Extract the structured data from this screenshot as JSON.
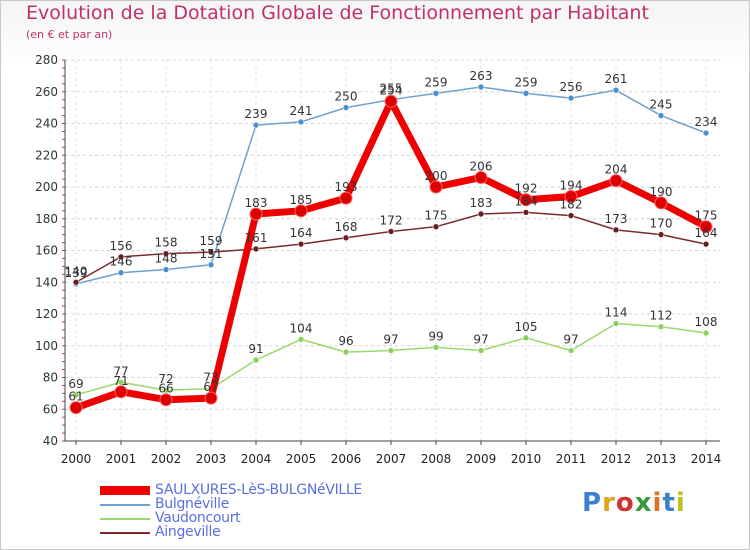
{
  "title": "Evolution de la Dotation Globale de Fonctionnement par Habitant",
  "subtitle": "(en € et par an)",
  "logo_text": "Proxiti",
  "chart_data": {
    "type": "line",
    "title": "Evolution de la Dotation Globale de Fonctionnement par Habitant",
    "ylabel": "(en € et par an)",
    "xlabel": "",
    "categories": [
      "2000",
      "2001",
      "2002",
      "2003",
      "2004",
      "2005",
      "2006",
      "2007",
      "2008",
      "2009",
      "2010",
      "2011",
      "2012",
      "2013",
      "2014"
    ],
    "y_ticks": [
      40,
      60,
      80,
      100,
      120,
      140,
      160,
      180,
      200,
      220,
      240,
      260,
      280
    ],
    "ylim": [
      40,
      280
    ],
    "grid": "horizontal dashed",
    "legend_position": "bottom-left",
    "series": [
      {
        "name": "SAULXURES-LèS-BULGNéVILLE",
        "color": "#ee0000",
        "marker": "#dd0000",
        "values": [
          61,
          71,
          66,
          67,
          183,
          185,
          193,
          254,
          200,
          206,
          192,
          194,
          204,
          190,
          175
        ]
      },
      {
        "name": "Bulgnéville",
        "color": "#6fa0cf",
        "marker": "#4a8fd0",
        "values": [
          139,
          146,
          148,
          151,
          239,
          241,
          250,
          255,
          259,
          263,
          259,
          256,
          261,
          245,
          234
        ]
      },
      {
        "name": "Vaudoncourt",
        "color": "#9bd86a",
        "marker": "#8ad05a",
        "values": [
          69,
          77,
          72,
          73,
          91,
          104,
          96,
          97,
          99,
          97,
          105,
          97,
          114,
          112,
          108
        ]
      },
      {
        "name": "Aingeville",
        "color": "#7a2a2a",
        "marker": "#6a1f1f",
        "values": [
          140,
          156,
          158,
          159,
          161,
          164,
          168,
          172,
          175,
          183,
          184,
          182,
          173,
          170,
          164
        ]
      }
    ]
  }
}
